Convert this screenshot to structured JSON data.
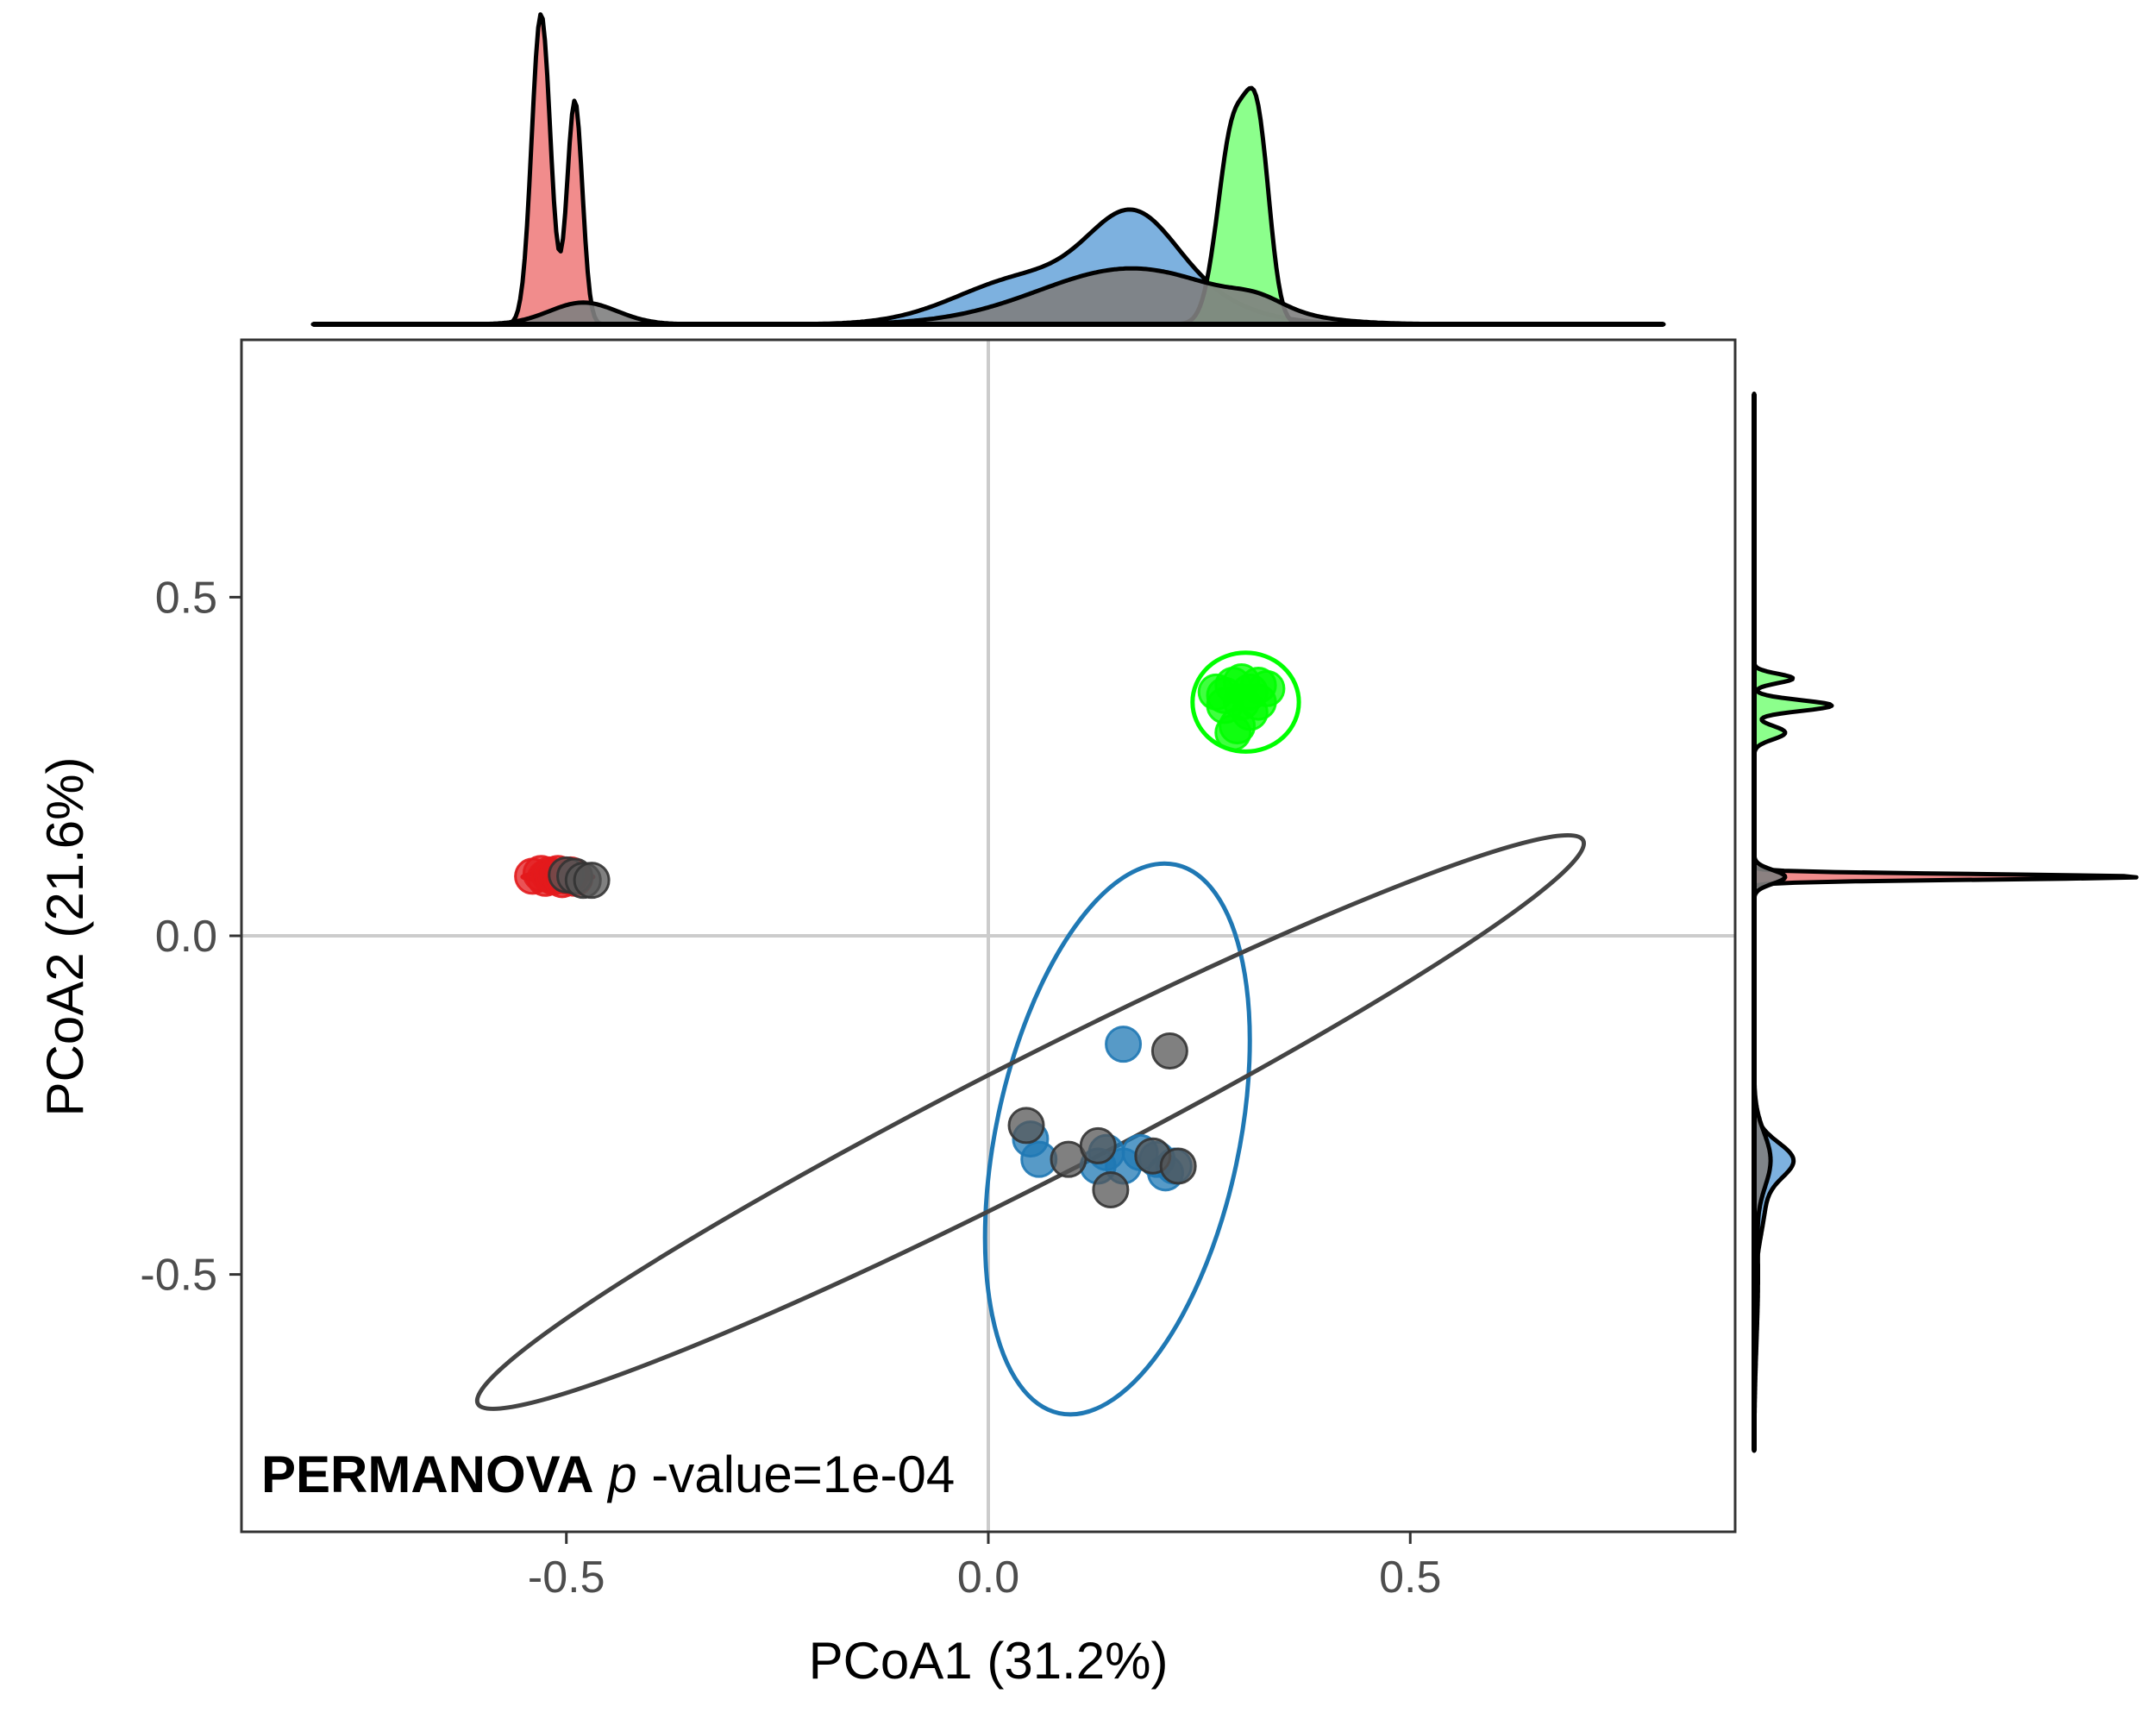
{
  "chart_data": {
    "type": "scatter",
    "xlabel": "PCoA1 (31.2%)",
    "ylabel": "PCoA2 (21.6%)",
    "xlim": [
      -0.885,
      0.885
    ],
    "ylim": [
      -0.88,
      0.88
    ],
    "x_ticks": [
      {
        "v": -0.5,
        "label": "-0.5"
      },
      {
        "v": 0.0,
        "label": "0.0"
      },
      {
        "v": 0.5,
        "label": "0.5"
      }
    ],
    "y_ticks": [
      {
        "v": -0.5,
        "label": "-0.5"
      },
      {
        "v": 0.0,
        "label": "0.0"
      },
      {
        "v": 0.5,
        "label": "0.5"
      }
    ],
    "reference_lines": {
      "x": 0,
      "y": 0
    },
    "grid": false,
    "legend": "none",
    "annotation": {
      "bold": "PERMANOVA",
      "italic": "p",
      "rest": "-value=1e-04"
    },
    "series": [
      {
        "color": "#e31a1c",
        "points": [
          [
            -0.54,
            0.088
          ],
          [
            -0.53,
            0.092
          ],
          [
            -0.525,
            0.085
          ],
          [
            -0.52,
            0.09
          ],
          [
            -0.515,
            0.087
          ],
          [
            -0.51,
            0.092
          ],
          [
            -0.505,
            0.083
          ],
          [
            -0.5,
            0.088
          ],
          [
            -0.495,
            0.09
          ],
          [
            -0.49,
            0.085
          ]
        ],
        "ellipse": {
          "cx": -0.51,
          "cy": 0.087,
          "rx": 0.042,
          "ry": 0.006,
          "angle": 0
        }
      },
      {
        "color": "#00ff00",
        "points": [
          [
            0.27,
            0.36
          ],
          [
            0.28,
            0.355
          ],
          [
            0.29,
            0.37
          ],
          [
            0.3,
            0.375
          ],
          [
            0.31,
            0.36
          ],
          [
            0.32,
            0.37
          ],
          [
            0.33,
            0.365
          ],
          [
            0.3,
            0.345
          ],
          [
            0.31,
            0.33
          ],
          [
            0.295,
            0.31
          ],
          [
            0.29,
            0.3
          ],
          [
            0.32,
            0.345
          ],
          [
            0.28,
            0.34
          ]
        ],
        "ellipse": {
          "cx": 0.305,
          "cy": 0.345,
          "rx": 0.063,
          "ry": 0.073,
          "angle": 0
        }
      },
      {
        "color": "#1f78b4",
        "points": [
          [
            0.16,
            -0.16
          ],
          [
            0.05,
            -0.3
          ],
          [
            0.06,
            -0.33
          ],
          [
            0.14,
            -0.32
          ],
          [
            0.16,
            -0.34
          ],
          [
            0.2,
            -0.33
          ],
          [
            0.21,
            -0.35
          ],
          [
            0.22,
            -0.34
          ],
          [
            0.13,
            -0.34
          ],
          [
            0.18,
            -0.32
          ]
        ],
        "ellipse": {
          "cx": 0.153,
          "cy": -0.3,
          "rx": 0.144,
          "ry": 0.414,
          "angle": 12
        }
      },
      {
        "color": "#555555",
        "points": [
          [
            -0.5,
            0.09
          ],
          [
            -0.49,
            0.088
          ],
          [
            -0.48,
            0.082
          ],
          [
            -0.47,
            0.082
          ],
          [
            0.215,
            -0.17
          ],
          [
            0.045,
            -0.28
          ],
          [
            0.095,
            -0.33
          ],
          [
            0.13,
            -0.31
          ],
          [
            0.195,
            -0.325
          ],
          [
            0.225,
            -0.34
          ],
          [
            0.145,
            -0.375
          ]
        ],
        "ellipse": {
          "cx": 0.05,
          "cy": -0.275,
          "rx": 0.735,
          "ry": 0.09,
          "angle": -27
        }
      }
    ],
    "marginal_x_density": {
      "series": [
        {
          "color": "#f08080",
          "peaks": [
            [
              -0.53,
              0.011,
              1.0
            ],
            [
              -0.49,
              0.009,
              0.72
            ]
          ]
        },
        {
          "color": "#6fa8dc",
          "peaks": [
            [
              0.04,
              0.08,
              0.14
            ],
            [
              0.17,
              0.05,
              0.22
            ],
            [
              0.2,
              0.08,
              0.12
            ]
          ]
        },
        {
          "color": "#7fff7f",
          "peaks": [
            [
              0.29,
              0.018,
              0.62
            ],
            [
              0.32,
              0.014,
              0.55
            ]
          ]
        },
        {
          "color": "#7f7f7f",
          "peaks": [
            [
              -0.48,
              0.04,
              0.07
            ],
            [
              0.17,
              0.11,
              0.18
            ],
            [
              0.32,
              0.03,
              0.03
            ]
          ]
        }
      ]
    },
    "marginal_y_density": {
      "series": [
        {
          "color": "#f08080",
          "peaks": [
            [
              0.087,
              0.004,
              1.0
            ]
          ]
        },
        {
          "color": "#6fa8dc",
          "peaks": [
            [
              -0.33,
              0.025,
              0.08
            ],
            [
              -0.38,
              0.06,
              0.03
            ]
          ]
        },
        {
          "color": "#7fff7f",
          "peaks": [
            [
              0.34,
              0.008,
              0.2
            ],
            [
              0.38,
              0.007,
              0.1
            ],
            [
              0.3,
              0.01,
              0.08
            ]
          ]
        },
        {
          "color": "#7f7f7f",
          "peaks": [
            [
              -0.33,
              0.04,
              0.04
            ],
            [
              0.087,
              0.01,
              0.08
            ],
            [
              -0.5,
              0.1,
              0.01
            ]
          ]
        }
      ]
    }
  }
}
